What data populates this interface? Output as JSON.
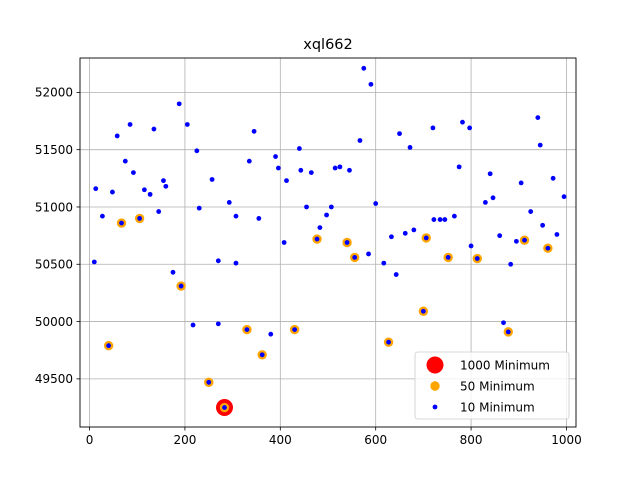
{
  "chart_data": {
    "type": "scatter",
    "title": "xql662",
    "xlabel": "",
    "ylabel": "",
    "xlim": [
      -20,
      1020
    ],
    "ylim": [
      49080,
      52300
    ],
    "xticks": [
      0,
      200,
      400,
      600,
      800,
      1000
    ],
    "yticks": [
      49500,
      50000,
      50500,
      51000,
      51500,
      52000
    ],
    "grid": true,
    "legend_position": "lower right",
    "series": [
      {
        "name": "1000 Minimum",
        "color": "#ff0000",
        "marker": "large-circle",
        "points": [
          [
            283,
            49250
          ]
        ]
      },
      {
        "name": "50 Minimum",
        "color": "#ffa500",
        "marker": "medium-circle",
        "points": [
          [
            40,
            49790
          ],
          [
            67,
            50860
          ],
          [
            105,
            50900
          ],
          [
            192,
            50310
          ],
          [
            250,
            49470
          ],
          [
            283,
            49250
          ],
          [
            330,
            49930
          ],
          [
            362,
            49710
          ],
          [
            430,
            49930
          ],
          [
            477,
            50720
          ],
          [
            540,
            50690
          ],
          [
            556,
            50560
          ],
          [
            627,
            49820
          ],
          [
            700,
            50090
          ],
          [
            706,
            50730
          ],
          [
            752,
            50560
          ],
          [
            813,
            50550
          ],
          [
            878,
            49910
          ],
          [
            912,
            50710
          ],
          [
            961,
            50640
          ]
        ]
      },
      {
        "name": "10 Minimum",
        "color": "#0000ff",
        "marker": "small-circle",
        "points": [
          [
            10,
            50520
          ],
          [
            13,
            51160
          ],
          [
            27,
            50920
          ],
          [
            40,
            49790
          ],
          [
            48,
            51130
          ],
          [
            58,
            51620
          ],
          [
            67,
            50860
          ],
          [
            75,
            51400
          ],
          [
            85,
            51720
          ],
          [
            92,
            51300
          ],
          [
            105,
            50900
          ],
          [
            115,
            51150
          ],
          [
            127,
            51110
          ],
          [
            135,
            51680
          ],
          [
            145,
            50960
          ],
          [
            155,
            51230
          ],
          [
            160,
            51180
          ],
          [
            175,
            50430
          ],
          [
            188,
            51900
          ],
          [
            192,
            50310
          ],
          [
            205,
            51720
          ],
          [
            217,
            49970
          ],
          [
            225,
            51490
          ],
          [
            230,
            50990
          ],
          [
            250,
            49470
          ],
          [
            257,
            51240
          ],
          [
            270,
            50530
          ],
          [
            270,
            49980
          ],
          [
            283,
            49250
          ],
          [
            293,
            51040
          ],
          [
            307,
            50510
          ],
          [
            307,
            50920
          ],
          [
            330,
            49930
          ],
          [
            335,
            51400
          ],
          [
            345,
            51660
          ],
          [
            355,
            50900
          ],
          [
            362,
            49710
          ],
          [
            380,
            49890
          ],
          [
            390,
            51440
          ],
          [
            396,
            51340
          ],
          [
            408,
            50690
          ],
          [
            413,
            51230
          ],
          [
            430,
            49930
          ],
          [
            440,
            51510
          ],
          [
            443,
            51320
          ],
          [
            455,
            51000
          ],
          [
            465,
            51300
          ],
          [
            477,
            50720
          ],
          [
            483,
            50820
          ],
          [
            497,
            50930
          ],
          [
            507,
            51000
          ],
          [
            515,
            51340
          ],
          [
            525,
            51350
          ],
          [
            540,
            50690
          ],
          [
            545,
            51320
          ],
          [
            556,
            50560
          ],
          [
            567,
            51580
          ],
          [
            575,
            52210
          ],
          [
            585,
            50590
          ],
          [
            590,
            52070
          ],
          [
            600,
            51030
          ],
          [
            617,
            50510
          ],
          [
            627,
            49820
          ],
          [
            633,
            50740
          ],
          [
            643,
            50410
          ],
          [
            650,
            51640
          ],
          [
            662,
            50770
          ],
          [
            672,
            51520
          ],
          [
            680,
            50800
          ],
          [
            700,
            50090
          ],
          [
            706,
            50730
          ],
          [
            720,
            51690
          ],
          [
            722,
            50890
          ],
          [
            735,
            50890
          ],
          [
            745,
            50890
          ],
          [
            752,
            50560
          ],
          [
            765,
            50920
          ],
          [
            775,
            51350
          ],
          [
            782,
            51740
          ],
          [
            797,
            51690
          ],
          [
            800,
            50660
          ],
          [
            813,
            50550
          ],
          [
            830,
            51040
          ],
          [
            840,
            51290
          ],
          [
            846,
            51080
          ],
          [
            860,
            50750
          ],
          [
            868,
            49990
          ],
          [
            878,
            49910
          ],
          [
            883,
            50500
          ],
          [
            895,
            50700
          ],
          [
            905,
            51210
          ],
          [
            912,
            50710
          ],
          [
            925,
            50960
          ],
          [
            940,
            51780
          ],
          [
            945,
            51540
          ],
          [
            950,
            50840
          ],
          [
            961,
            50640
          ],
          [
            972,
            51250
          ],
          [
            980,
            50760
          ],
          [
            995,
            51090
          ]
        ]
      }
    ]
  }
}
